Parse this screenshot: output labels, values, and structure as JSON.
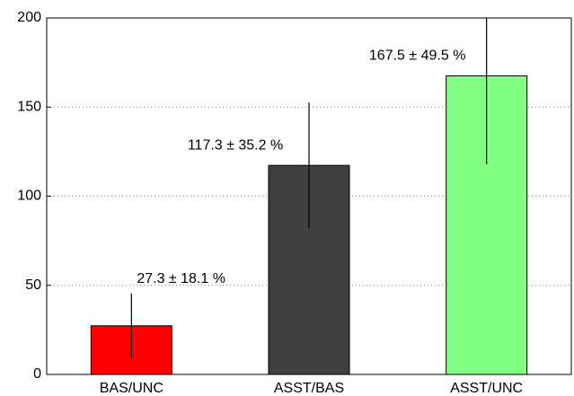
{
  "chart_data": {
    "type": "bar",
    "categories": [
      "BAS/UNC",
      "ASST/BAS",
      "ASST/UNC"
    ],
    "values": [
      27.3,
      117.3,
      167.5
    ],
    "errors": [
      18.1,
      35.2,
      49.5
    ],
    "value_labels": [
      "27.3 ± 18.1 %",
      "117.3 ± 35.2 %",
      "167.5 ± 49.5 %"
    ],
    "colors": [
      "#ff0000",
      "#404040",
      "#80ff80"
    ],
    "ylim": [
      0,
      200
    ],
    "yticks": [
      0,
      50,
      100,
      150,
      200
    ],
    "grid": true
  }
}
